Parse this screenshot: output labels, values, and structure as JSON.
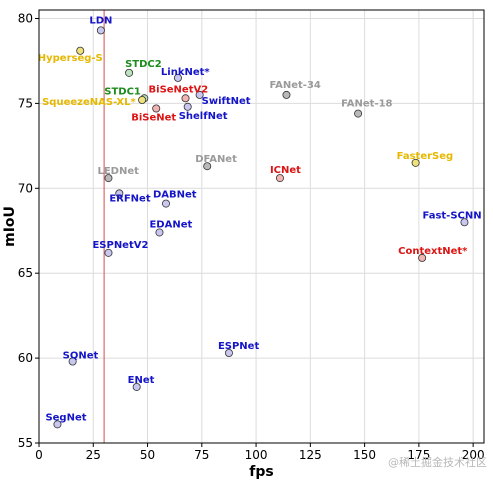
{
  "chart_data": {
    "type": "scatter",
    "xlabel": "fps",
    "ylabel": "mIoU",
    "xlim": [
      0,
      205
    ],
    "ylim": [
      55,
      80.5
    ],
    "xticks": [
      0,
      25,
      50,
      75,
      100,
      125,
      150,
      175,
      200
    ],
    "yticks": [
      55,
      60,
      65,
      70,
      75,
      80
    ],
    "grid": true,
    "vline_x": 30,
    "colors": {
      "blue": "#1414c8",
      "green": "#1c8c1c",
      "red": "#dc1414",
      "gray": "#9a9a9a",
      "yellow": "#e6b800",
      "vline": "#d96a6a"
    },
    "points": [
      {
        "label": "LDN",
        "x": 28.5,
        "y": 79.3,
        "color": "blue",
        "fill": "#c9c7ef"
      },
      {
        "label": "Hyperseg-S",
        "x": 19,
        "y": 78.1,
        "color": "yellow",
        "fill": "#f0e27a"
      },
      {
        "label": "STDC2",
        "x": 41.5,
        "y": 76.8,
        "color": "green",
        "fill": "#bfe3bf"
      },
      {
        "label": "LinkNet*",
        "x": 64,
        "y": 76.5,
        "color": "blue",
        "fill": "#c9c7ef"
      },
      {
        "label": "STDC1",
        "x": 48.5,
        "y": 75.3,
        "color": "green",
        "fill": "#bfe3bf"
      },
      {
        "label": "SqueezeNAS-XL*",
        "x": 47.5,
        "y": 75.2,
        "color": "yellow",
        "fill": "#f0e27a"
      },
      {
        "label": "BiSeNetV2",
        "x": 67.5,
        "y": 75.3,
        "color": "red",
        "fill": "#f2b3b3"
      },
      {
        "label": "SwiftNet",
        "x": 74,
        "y": 75.5,
        "color": "blue",
        "fill": "#c9c7ef"
      },
      {
        "label": "BiSeNet",
        "x": 54,
        "y": 74.7,
        "color": "red",
        "fill": "#f2b3b3"
      },
      {
        "label": "ShelfNet",
        "x": 68.5,
        "y": 74.8,
        "color": "blue",
        "fill": "#c9c7ef"
      },
      {
        "label": "FANet-34",
        "x": 114,
        "y": 75.5,
        "color": "gray",
        "fill": "#b9b9b9"
      },
      {
        "label": "FANet-18",
        "x": 147,
        "y": 74.4,
        "color": "gray",
        "fill": "#b9b9b9"
      },
      {
        "label": "LEDNet",
        "x": 32,
        "y": 70.6,
        "color": "gray",
        "fill": "#b9b9b9"
      },
      {
        "label": "DFANet",
        "x": 77.5,
        "y": 71.3,
        "color": "gray",
        "fill": "#b9b9b9"
      },
      {
        "label": "ICNet",
        "x": 111,
        "y": 70.6,
        "color": "red",
        "fill": "#f2b3b3"
      },
      {
        "label": "FasterSeg",
        "x": 173.5,
        "y": 71.5,
        "color": "yellow",
        "fill": "#f0e27a"
      },
      {
        "label": "ERFNet",
        "x": 37,
        "y": 69.7,
        "color": "blue",
        "fill": "#c9c7ef"
      },
      {
        "label": "DABNet",
        "x": 58.5,
        "y": 69.1,
        "color": "blue",
        "fill": "#c9c7ef"
      },
      {
        "label": "Fast-SCNN",
        "x": 196,
        "y": 68.0,
        "color": "blue",
        "fill": "#c9c7ef"
      },
      {
        "label": "EDANet",
        "x": 55.5,
        "y": 67.4,
        "color": "blue",
        "fill": "#c9c7ef"
      },
      {
        "label": "ESPNetV2",
        "x": 32,
        "y": 66.2,
        "color": "blue",
        "fill": "#c9c7ef"
      },
      {
        "label": "ContextNet*",
        "x": 176.5,
        "y": 65.9,
        "color": "red",
        "fill": "#f2b3b3"
      },
      {
        "label": "SQNet",
        "x": 15.5,
        "y": 59.8,
        "color": "blue",
        "fill": "#c9c7ef"
      },
      {
        "label": "ESPNet",
        "x": 87.5,
        "y": 60.3,
        "color": "blue",
        "fill": "#c9c7ef"
      },
      {
        "label": "ENet",
        "x": 45,
        "y": 58.3,
        "color": "blue",
        "fill": "#c9c7ef"
      },
      {
        "label": "SegNet",
        "x": 8.5,
        "y": 56.1,
        "color": "blue",
        "fill": "#c9c7ef"
      }
    ]
  },
  "watermark": "@稀土掘金技术社区"
}
